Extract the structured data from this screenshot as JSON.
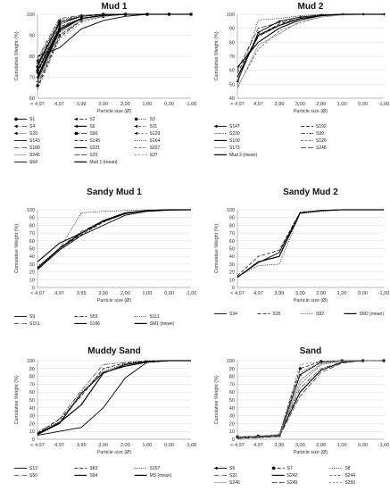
{
  "chart_data": [
    {
      "type": "line",
      "title": "Mud 1",
      "xlabel": "Particle size (Ø)",
      "ylabel": "Cumulative Weight (%)",
      "categories": [
        "< 4,97",
        "4,97",
        "3,99",
        "3,00",
        "2,00",
        "1,00",
        "0,00",
        "-1,00"
      ],
      "ylim": [
        60,
        100
      ],
      "yticks": [
        60,
        70,
        80,
        90,
        100
      ],
      "series": [
        {
          "name": "S1",
          "values": [
            75,
            96,
            99,
            100,
            100,
            100,
            100,
            100
          ],
          "marker": "circle"
        },
        {
          "name": "S2",
          "values": [
            72,
            94,
            98,
            99.5,
            100,
            100,
            100,
            100
          ],
          "marker": "arrow"
        },
        {
          "name": "S3",
          "values": [
            73,
            95,
            99,
            100,
            100,
            100,
            100,
            100
          ],
          "marker": "circle"
        },
        {
          "name": "S4",
          "values": [
            77,
            97,
            99,
            100,
            100,
            100,
            100,
            100
          ],
          "marker": "arrow"
        },
        {
          "name": "S6",
          "values": [
            70,
            93,
            98,
            99.5,
            100,
            100,
            100,
            100
          ],
          "marker": "arrow"
        },
        {
          "name": "S11",
          "values": [
            78,
            97,
            99.5,
            100,
            100,
            100,
            100,
            100
          ],
          "marker": "arrow"
        },
        {
          "name": "S20",
          "values": [
            68,
            92,
            98,
            99.5,
            100,
            100,
            100,
            100
          ],
          "marker": "arrow"
        },
        {
          "name": "S96",
          "values": [
            66,
            90,
            97,
            99,
            100,
            100,
            100,
            100
          ],
          "marker": "circle"
        },
        {
          "name": "S129",
          "values": [
            74,
            95,
            99,
            100,
            100,
            100,
            100,
            100
          ],
          "marker": "arrow"
        },
        {
          "name": "S143",
          "values": [
            76,
            96,
            99,
            100,
            100,
            100,
            100,
            100
          ],
          "marker": "none"
        },
        {
          "name": "S145",
          "values": [
            65,
            89,
            97,
            99,
            100,
            100,
            100,
            100
          ],
          "marker": "none"
        },
        {
          "name": "S164",
          "values": [
            71,
            94,
            98,
            99.5,
            100,
            100,
            100,
            100
          ],
          "marker": "none"
        },
        {
          "name": "S180",
          "values": [
            79,
            98,
            99.5,
            100,
            100,
            100,
            100,
            100
          ],
          "marker": "none"
        },
        {
          "name": "S221",
          "values": [
            69,
            92,
            98,
            99.5,
            100,
            100,
            100,
            100
          ],
          "marker": "none"
        },
        {
          "name": "S227",
          "values": [
            73,
            95,
            99,
            100,
            100,
            100,
            100,
            100
          ],
          "marker": "none"
        },
        {
          "name": "S246",
          "values": [
            67,
            91,
            97,
            99,
            100,
            100,
            100,
            100
          ],
          "marker": "none"
        },
        {
          "name": "S25",
          "values": [
            75,
            96,
            99,
            100,
            100,
            100,
            100,
            100
          ],
          "marker": "none"
        },
        {
          "name": "S37",
          "values": [
            64,
            88,
            96,
            99,
            100,
            100,
            100,
            100
          ],
          "marker": "none"
        },
        {
          "name": "S64",
          "values": [
            80,
            84,
            93,
            97,
            99,
            100,
            100,
            100
          ],
          "marker": "none"
        },
        {
          "name": "Mud 1 (mean)",
          "values": [
            73,
            93,
            98,
            99.5,
            100,
            100,
            100,
            100
          ],
          "marker": "none"
        }
      ]
    },
    {
      "type": "line",
      "title": "Mud 2",
      "xlabel": "Particle size (Ø)",
      "ylabel": "Cumulative Weight (%)",
      "categories": [
        "< 4,97",
        "4,97",
        "3,99",
        "3,00",
        "2,00",
        "1,00",
        "0,00",
        "-1,00"
      ],
      "ylim": [
        40,
        100
      ],
      "yticks": [
        40,
        50,
        60,
        70,
        80,
        90,
        100
      ],
      "series": [
        {
          "name": "S147",
          "values": [
            52,
            87,
            95,
            98,
            99.5,
            100,
            100,
            100
          ],
          "marker": "arrow"
        },
        {
          "name": "S192",
          "values": [
            58,
            85,
            93,
            97,
            99,
            100,
            100,
            100
          ],
          "marker": "none"
        },
        {
          "name": "S230",
          "values": [
            50,
            96,
            97,
            99,
            100,
            100,
            100,
            100
          ],
          "marker": "none"
        },
        {
          "name": "S99",
          "values": [
            55,
            84,
            92,
            97,
            99,
            100,
            100,
            100
          ],
          "marker": "none"
        },
        {
          "name": "S109",
          "values": [
            62,
            80,
            90,
            96,
            99,
            100,
            100,
            100
          ],
          "marker": "none"
        },
        {
          "name": "S120",
          "values": [
            48,
            75,
            88,
            94,
            98,
            99.5,
            100,
            100
          ],
          "marker": "none"
        },
        {
          "name": "S173",
          "values": [
            47,
            78,
            86,
            95,
            98,
            99.5,
            100,
            100
          ],
          "marker": "none"
        },
        {
          "name": "S248",
          "values": [
            60,
            90,
            94,
            97,
            99,
            100,
            100,
            100
          ],
          "marker": "none"
        },
        {
          "name": "Mud 2 (mean)",
          "values": [
            55,
            85,
            92,
            97,
            99,
            100,
            100,
            100
          ],
          "marker": "none"
        }
      ]
    },
    {
      "type": "line",
      "title": "Sandy Mud 1",
      "xlabel": "Particle size (Ø)",
      "ylabel": "Cumulative Weight (%)",
      "categories": [
        "< 4,97",
        "4,97",
        "3,99",
        "3,00",
        "2,00",
        "1,00",
        "0,00",
        "-1,00"
      ],
      "ylim": [
        0,
        100
      ],
      "yticks": [
        0,
        10,
        20,
        30,
        40,
        50,
        60,
        70,
        80,
        90,
        100
      ],
      "series": [
        {
          "name": "S9",
          "values": [
            23,
            48,
            67,
            80,
            93,
            98,
            99.5,
            100
          ],
          "marker": "none"
        },
        {
          "name": "S59",
          "values": [
            25,
            50,
            68,
            84,
            95,
            99,
            100,
            100
          ],
          "marker": "none"
        },
        {
          "name": "S111",
          "values": [
            27,
            50,
            96,
            98,
            99,
            100,
            100,
            100
          ],
          "marker": "none"
        },
        {
          "name": "S151",
          "values": [
            24,
            51,
            72,
            86,
            96,
            99,
            100,
            100
          ],
          "marker": "none"
        },
        {
          "name": "S186",
          "values": [
            33,
            57,
            70,
            85,
            95,
            99,
            100,
            100
          ],
          "marker": "none"
        },
        {
          "name": "SM1 (mean)",
          "values": [
            25,
            50,
            70,
            86,
            96,
            99,
            100,
            100
          ],
          "marker": "none"
        }
      ]
    },
    {
      "type": "line",
      "title": "Sandy Mud 2",
      "xlabel": "Particle size (Ø)",
      "ylabel": "Cumulative Weight (%)",
      "categories": [
        "< 4,97",
        "4,97",
        "3,99",
        "3,00",
        "2,00",
        "1,00",
        "0,00",
        "-1,00"
      ],
      "ylim": [
        0,
        100
      ],
      "yticks": [
        0,
        10,
        20,
        30,
        40,
        50,
        60,
        70,
        80,
        90,
        100
      ],
      "series": [
        {
          "name": "S34",
          "values": [
            13,
            32,
            45,
            96,
            99,
            100,
            100,
            100
          ],
          "marker": "none"
        },
        {
          "name": "S35",
          "values": [
            15,
            40,
            48,
            97,
            99,
            100,
            100,
            100
          ],
          "marker": "none"
        },
        {
          "name": "S92",
          "values": [
            14,
            28,
            30,
            95,
            98,
            100,
            100,
            100
          ],
          "marker": "none"
        },
        {
          "name": "SM2 (mean)",
          "values": [
            13,
            33,
            40,
            96,
            99,
            100,
            100,
            100
          ],
          "marker": "none"
        }
      ]
    },
    {
      "type": "line",
      "title": "Muddy Sand",
      "xlabel": "Particle size (Ø)",
      "ylabel": "Cumulative Weight (%)",
      "categories": [
        "< 4,97",
        "4,97",
        "3,99",
        "3,00",
        "2,00",
        "1,00",
        "0,00",
        "-1,00"
      ],
      "ylim": [
        0,
        100
      ],
      "yticks": [
        0,
        10,
        20,
        30,
        40,
        50,
        60,
        70,
        80,
        90,
        100
      ],
      "series": [
        {
          "name": "S13",
          "values": [
            5,
            10,
            15,
            40,
            78,
            98,
            100,
            100
          ],
          "marker": "none"
        },
        {
          "name": "S83",
          "values": [
            8,
            25,
            55,
            90,
            97,
            99.5,
            100,
            100
          ],
          "marker": "none"
        },
        {
          "name": "S157",
          "values": [
            10,
            22,
            60,
            87,
            96,
            99,
            100,
            100
          ],
          "marker": "none"
        },
        {
          "name": "S50",
          "values": [
            7,
            26,
            62,
            95,
            98,
            100,
            100,
            100
          ],
          "marker": "none"
        },
        {
          "name": "S94",
          "values": [
            6,
            20,
            58,
            85,
            93,
            98,
            100,
            100
          ],
          "marker": "none"
        },
        {
          "name": "MS (mean)",
          "values": [
            7,
            21,
            44,
            84,
            95,
            99,
            100,
            100
          ],
          "marker": "none"
        }
      ]
    },
    {
      "type": "line",
      "title": "Sand",
      "xlabel": "Particle size (Ø)",
      "ylabel": "Cumulative Weight (%)",
      "categories": [
        "< 4,97",
        "4,97",
        "3,99",
        "3,00",
        "2,00",
        "1,00",
        "0,00",
        "-1,00"
      ],
      "ylim": [
        0,
        100
      ],
      "yticks": [
        0,
        10,
        20,
        30,
        40,
        50,
        60,
        70,
        80,
        90,
        100
      ],
      "series": [
        {
          "name": "S5",
          "values": [
            2,
            3,
            4,
            82,
            98,
            100,
            100,
            100
          ],
          "marker": "arrow"
        },
        {
          "name": "S7",
          "values": [
            3,
            4,
            5,
            90,
            99,
            100,
            100,
            100
          ],
          "marker": "circle"
        },
        {
          "name": "S8",
          "values": [
            2,
            3,
            5,
            70,
            95,
            99,
            100,
            100
          ],
          "marker": "none"
        },
        {
          "name": "S21",
          "values": [
            1,
            2,
            4,
            65,
            90,
            98,
            100,
            100
          ],
          "marker": "none"
        },
        {
          "name": "S242",
          "values": [
            2,
            3,
            5,
            60,
            88,
            98,
            100,
            100
          ],
          "marker": "none"
        },
        {
          "name": "S244",
          "values": [
            3,
            4,
            6,
            85,
            98,
            100,
            100,
            100
          ],
          "marker": "none"
        },
        {
          "name": "S246",
          "values": [
            2,
            3,
            4,
            75,
            96,
            99.5,
            100,
            100
          ],
          "marker": "none"
        },
        {
          "name": "S249",
          "values": [
            1,
            2,
            3,
            55,
            85,
            97,
            100,
            100
          ],
          "marker": "none"
        },
        {
          "name": "S250",
          "values": [
            2,
            3,
            5,
            95,
            99,
            100,
            100,
            100
          ],
          "marker": "none"
        }
      ]
    }
  ]
}
